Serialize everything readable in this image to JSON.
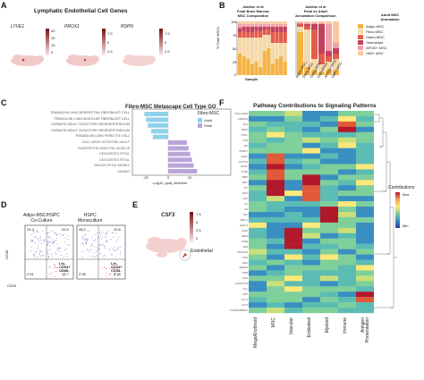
{
  "panels": {
    "A": {
      "letter": "A",
      "title": "Lymphatic Endothelial Cell Genes",
      "genes": [
        "LYVE1",
        "PROX1",
        "PDPN"
      ],
      "scales": [
        {
          "ticks": [
            "20",
            "15",
            "10",
            "5"
          ]
        },
        {
          "ticks": [
            "7.5",
            "5",
            "2.5"
          ]
        },
        {
          "ticks": [
            "7.5",
            "5",
            "2.5"
          ]
        }
      ]
    },
    "B": {
      "letter": "B",
      "title_left": "Jardine et al\nFetal Bone Marrow\nMSC Composition",
      "title_right": "Jardine et al\nFetal vs Adult\nAnnotation Comparison",
      "ylabel": "% Total MSCs",
      "xlabel": "Sample",
      "yticks": [
        "100",
        "75",
        "50",
        "25",
        "0"
      ],
      "right_xlabels": [
        "Adipo-MSC",
        "Fibro-MSC",
        "Osteo-MSC",
        "Osteoblast",
        "APOD+ MSC",
        "OMI+ MSC"
      ],
      "legend_title": "Adult MSC\nAnnotation",
      "legend": [
        {
          "label": "Adipo-MSC",
          "color": "#f5b342"
        },
        {
          "label": "Fibro-MSC",
          "color": "#f6d9a8"
        },
        {
          "label": "Osteo-MSC",
          "color": "#e35d4a"
        },
        {
          "label": "Osteoblast",
          "color": "#c2415f"
        },
        {
          "label": "APOD+ MSC",
          "color": "#f0a0a8"
        },
        {
          "label": "OMI+ MSC",
          "color": "#f8c9a0"
        }
      ]
    },
    "C": {
      "letter": "C",
      "title": "Fibro-MSC Metascape Cell Type GO",
      "xlabel": "-Log10_qval_direction",
      "xticks": [
        "-20",
        "0",
        "20"
      ],
      "legend_title": "Fibro-MSC",
      "legend": [
        {
          "label": "Adult",
          "color": "#8fd0ea"
        },
        {
          "label": "Fetal",
          "color": "#b9a4d8"
        }
      ],
      "terms": [
        "TRAVAGLINI LUNG ADVENTITIAL FIBROBLAST CELL",
        "TRAVAGLINI LUNG ALVEOLAR FIBROBLAST CELL",
        "DURANTE ADULT OLFACTORY NEUROEPITHELIUM",
        "DURANTE ADULT OLFACTORY NEUROEPITHELIUM",
        "TRAVAGLINI LUNG PERICYTE CELL",
        "GAO LARGE INTESTINE ADULT",
        "RUBENSTEIN SKELETAL MUSCLE",
        "DESCARTES FETAL",
        "DESCARTES FETAL",
        "MENON FETAL KIDNEY",
        "MANNO"
      ]
    },
    "D": {
      "letter": "D",
      "left_title": "Adipo-MSC/HSPC\nCo-Culture",
      "right_title": "HSPC\nMonoculture",
      "left_q": [
        "24.3",
        "54.5",
        "2.51",
        "18.7"
      ],
      "right_q": [
        "48.9",
        "42.8",
        "2.98",
        "5.38"
      ],
      "gate_label": "Lin-\nCD34+\nCD38-",
      "ylabel": "CD38",
      "xlabel": "CD34"
    },
    "E": {
      "letter": "E",
      "gene": "CSF3",
      "ticks": [
        "7.5",
        "5",
        "2.5",
        "0"
      ],
      "annotation": "Endothelial"
    },
    "F": {
      "letter": "F",
      "title": "Pathway Contributions to Signaling Patterns",
      "columns": [
        "Mega/Erythroid",
        "MSC",
        "Vascular",
        "Endosteal",
        "Myeloid",
        "Immune",
        "Antigen\nPresentation"
      ],
      "legend_title": "Contributions",
      "legend_max": "Max",
      "legend_min": "Min",
      "pathways": [
        "COLLAGEN",
        "LAMININ",
        "FN1",
        "SPP1",
        "CXCL",
        "PTN",
        "MK",
        "ANGPT",
        "VEGF",
        "NOTCH",
        "PDGF",
        "TGFb",
        "BMP",
        "WNT",
        "KIT",
        "EPO",
        "CSF",
        "IL1",
        "IL6",
        "TNF",
        "MHC-I",
        "MHC-II",
        "ICAM",
        "SELE",
        "CD99",
        "JAM",
        "PECAM1",
        "CDH",
        "NRG",
        "SEMA3",
        "OSM",
        "GAS",
        "GALECTIN",
        "CCL",
        "APP",
        "THY1",
        "FLT3",
        "COMPLEMENT"
      ]
    }
  }
}
